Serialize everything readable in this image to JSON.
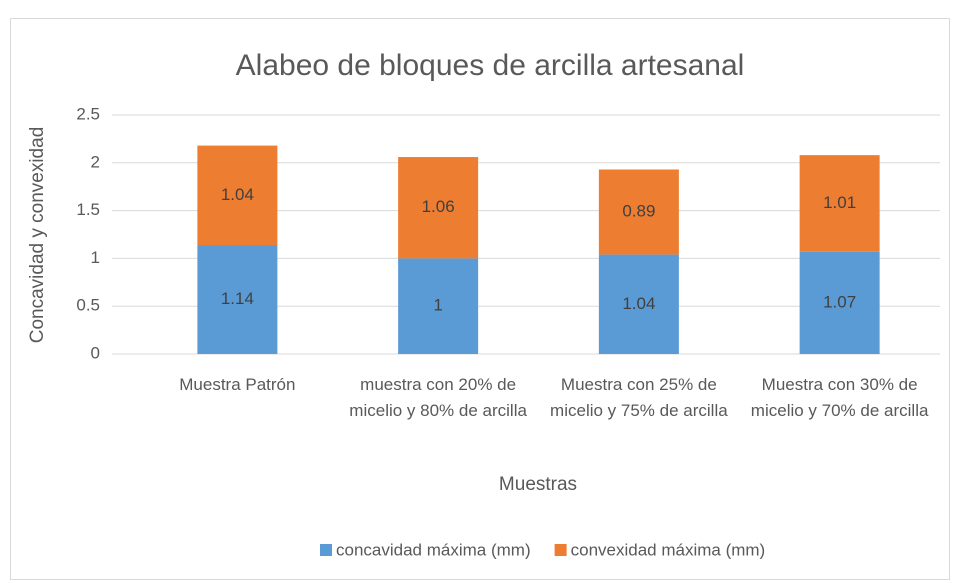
{
  "chart_data": {
    "type": "bar",
    "stacked": true,
    "title": "Alabeo de bloques de arcilla artesanal",
    "x_label": "Muestras",
    "y_label": "Concavidad y convexidad",
    "categories": [
      "Muestra Patrón",
      "muestra con 20% de micelio y 80% de arcilla",
      "Muestra con 25% de micelio y 75% de arcilla",
      "Muestra con 30% de micelio y 70% de arcilla"
    ],
    "series": [
      {
        "name": "concavidad máxima (mm)",
        "color": "#5b9bd5",
        "values": [
          1.14,
          1,
          1.04,
          1.07
        ]
      },
      {
        "name": "convexidad máxima (mm)",
        "color": "#ed7d31",
        "values": [
          1.04,
          1.06,
          0.89,
          1.01
        ]
      }
    ],
    "ylim": [
      0,
      2.5
    ],
    "yticks": [
      0,
      0.5,
      1,
      1.5,
      2,
      2.5
    ],
    "grid": true,
    "legend": "bottom"
  }
}
